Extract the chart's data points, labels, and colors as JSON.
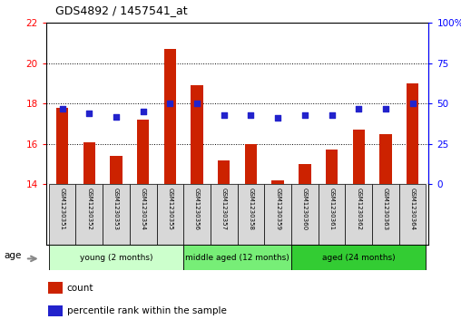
{
  "title": "GDS4892 / 1457541_at",
  "samples": [
    "GSM1230351",
    "GSM1230352",
    "GSM1230353",
    "GSM1230354",
    "GSM1230355",
    "GSM1230356",
    "GSM1230357",
    "GSM1230358",
    "GSM1230359",
    "GSM1230360",
    "GSM1230361",
    "GSM1230362",
    "GSM1230363",
    "GSM1230364"
  ],
  "counts": [
    17.8,
    16.1,
    15.4,
    17.2,
    20.7,
    18.9,
    15.2,
    16.0,
    14.2,
    15.0,
    15.7,
    16.7,
    16.5,
    19.0
  ],
  "percentiles": [
    47,
    44,
    42,
    45,
    50,
    50,
    43,
    43,
    41,
    43,
    43,
    47,
    47,
    50
  ],
  "bar_color": "#cc2200",
  "dot_color": "#2222cc",
  "ylim_left": [
    14,
    22
  ],
  "ylim_right": [
    0,
    100
  ],
  "yticks_left": [
    14,
    16,
    18,
    20,
    22
  ],
  "yticks_right": [
    0,
    25,
    50,
    75,
    100
  ],
  "ytick_labels_right": [
    "0",
    "25",
    "50",
    "75",
    "100%"
  ],
  "groups": [
    {
      "label": "young (2 months)",
      "start": 0,
      "end": 5,
      "color": "#ccffcc"
    },
    {
      "label": "middle aged (12 months)",
      "start": 5,
      "end": 9,
      "color": "#77ee77"
    },
    {
      "label": "aged (24 months)",
      "start": 9,
      "end": 14,
      "color": "#33cc33"
    }
  ],
  "age_label": "age",
  "legend_count_label": "count",
  "legend_pct_label": "percentile rank within the sample",
  "background_color": "#ffffff",
  "sample_bg": "#d8d8d8",
  "bar_width": 0.45
}
